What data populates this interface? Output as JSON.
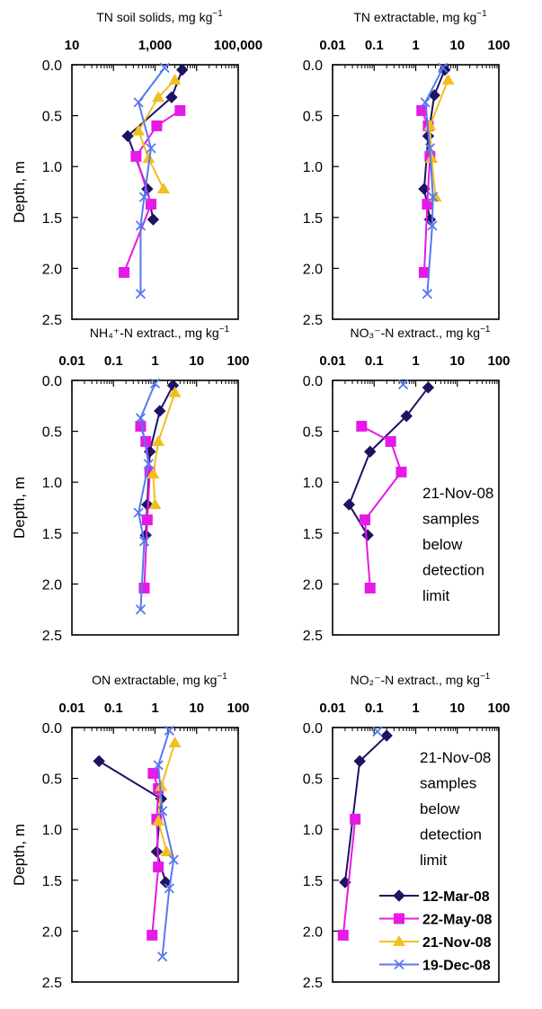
{
  "figure": {
    "y_axis_label": "Depth, m"
  },
  "legend": {
    "entries": [
      {
        "label": "12-Mar-08",
        "color": "#1b1464",
        "marker": "diamond"
      },
      {
        "label": "22-May-08",
        "color": "#e619e6",
        "marker": "square"
      },
      {
        "label": "21-Nov-08",
        "color": "#f0c020",
        "marker": "triangle"
      },
      {
        "label": "19-Dec-08",
        "color": "#5878f0",
        "marker": "x"
      }
    ]
  },
  "chart_data": [
    {
      "type": "line",
      "title": "TN soil solids, mg kg",
      "title_sup": "−1",
      "xscale": "log",
      "xlim": [
        10,
        100000
      ],
      "xticks": [
        "10",
        "1,000",
        "100,000"
      ],
      "xtick_values": [
        10,
        1000,
        100000
      ],
      "ylabel": "Depth, m",
      "ylim": [
        0,
        2.5
      ],
      "yticks": [
        "0.0",
        "0.5",
        "1.0",
        "1.5",
        "2.0",
        "2.5"
      ],
      "series": [
        {
          "name": "12-Mar-08",
          "points": [
            [
              4500,
              0.05
            ],
            [
              2500,
              0.32
            ],
            [
              220,
              0.7
            ],
            [
              650,
              1.22
            ],
            [
              900,
              1.52
            ]
          ]
        },
        {
          "name": "22-May-08",
          "points": [
            [
              4000,
              0.45
            ],
            [
              1100,
              0.6
            ],
            [
              350,
              0.9
            ],
            [
              800,
              1.37
            ],
            [
              180,
              2.04
            ]
          ]
        },
        {
          "name": "21-Nov-08",
          "points": [
            [
              3000,
              0.15
            ],
            [
              1200,
              0.32
            ],
            [
              400,
              0.65
            ],
            [
              700,
              0.92
            ],
            [
              1600,
              1.22
            ]
          ]
        },
        {
          "name": "19-Dec-08",
          "points": [
            [
              1700,
              0.03
            ],
            [
              400,
              0.37
            ],
            [
              800,
              0.82
            ],
            [
              550,
              1.3
            ],
            [
              450,
              1.58
            ],
            [
              450,
              2.25
            ]
          ]
        }
      ]
    },
    {
      "type": "line",
      "title": "TN extractable,  mg kg",
      "title_sup": "−1",
      "xscale": "log",
      "xlim": [
        0.01,
        100
      ],
      "xticks": [
        "0.01",
        "0.1",
        "1",
        "10",
        "100"
      ],
      "xtick_values": [
        0.01,
        0.1,
        1,
        10,
        100
      ],
      "ylim": [
        0,
        2.5
      ],
      "yticks": [
        "0.0",
        "0.5",
        "1.0",
        "1.5",
        "2.0",
        "2.5"
      ],
      "series": [
        {
          "name": "12-Mar-08",
          "points": [
            [
              5.0,
              0.05
            ],
            [
              2.8,
              0.3
            ],
            [
              2.0,
              0.7
            ],
            [
              1.6,
              1.22
            ],
            [
              2.2,
              1.52
            ]
          ]
        },
        {
          "name": "22-May-08",
          "points": [
            [
              1.4,
              0.45
            ],
            [
              2.0,
              0.6
            ],
            [
              2.2,
              0.9
            ],
            [
              1.9,
              1.37
            ],
            [
              1.6,
              2.04
            ]
          ]
        },
        {
          "name": "21-Nov-08",
          "points": [
            [
              6.0,
              0.15
            ],
            [
              2.2,
              0.6
            ],
            [
              2.4,
              0.92
            ],
            [
              3.0,
              1.3
            ]
          ]
        },
        {
          "name": "19-Dec-08",
          "points": [
            [
              4.5,
              0.03
            ],
            [
              1.7,
              0.37
            ],
            [
              2.2,
              0.82
            ],
            [
              2.6,
              1.3
            ],
            [
              2.5,
              1.58
            ],
            [
              1.9,
              2.25
            ]
          ]
        }
      ]
    },
    {
      "type": "line",
      "title": "NH₄⁺-N  extract.,  mg kg",
      "title_sup": "−1",
      "xscale": "log",
      "xlim": [
        0.01,
        100
      ],
      "xticks": [
        "0.01",
        "0.1",
        "1",
        "10",
        "100"
      ],
      "xtick_values": [
        0.01,
        0.1,
        1,
        10,
        100
      ],
      "ylabel": "Depth, m",
      "ylim": [
        0,
        2.5
      ],
      "yticks": [
        "0.0",
        "0.5",
        "1.0",
        "1.5",
        "2.0",
        "2.5"
      ],
      "series": [
        {
          "name": "12-Mar-08",
          "points": [
            [
              2.7,
              0.05
            ],
            [
              1.3,
              0.3
            ],
            [
              0.75,
              0.7
            ],
            [
              0.65,
              1.22
            ],
            [
              0.6,
              1.52
            ]
          ]
        },
        {
          "name": "22-May-08",
          "points": [
            [
              0.45,
              0.45
            ],
            [
              0.6,
              0.6
            ],
            [
              0.75,
              0.9
            ],
            [
              0.65,
              1.37
            ],
            [
              0.55,
              2.04
            ]
          ]
        },
        {
          "name": "21-Nov-08",
          "points": [
            [
              3.0,
              0.12
            ],
            [
              1.2,
              0.6
            ],
            [
              0.9,
              0.92
            ],
            [
              1.0,
              1.22
            ]
          ]
        },
        {
          "name": "19-Dec-08",
          "points": [
            [
              1.0,
              0.03
            ],
            [
              0.45,
              0.37
            ],
            [
              0.7,
              0.82
            ],
            [
              0.4,
              1.3
            ],
            [
              0.55,
              1.58
            ],
            [
              0.45,
              2.25
            ]
          ]
        }
      ]
    },
    {
      "type": "line",
      "title": "NO₃⁻-N  extract.,  mg kg",
      "title_sup": "−1",
      "xscale": "log",
      "xlim": [
        0.01,
        100
      ],
      "xticks": [
        "0.01",
        "0.1",
        "1",
        "10",
        "100"
      ],
      "xtick_values": [
        0.01,
        0.1,
        1,
        10,
        100
      ],
      "ylim": [
        0,
        2.5
      ],
      "yticks": [
        "0.0",
        "0.5",
        "1.0",
        "1.5",
        "2.0",
        "2.5"
      ],
      "annotation": [
        "21-Nov-08",
        "samples",
        "below",
        "detection",
        "limit"
      ],
      "series": [
        {
          "name": "12-Mar-08",
          "points": [
            [
              2.0,
              0.07
            ],
            [
              0.6,
              0.35
            ],
            [
              0.08,
              0.7
            ],
            [
              0.025,
              1.22
            ],
            [
              0.07,
              1.52
            ]
          ]
        },
        {
          "name": "22-May-08",
          "points": [
            [
              0.05,
              0.45
            ],
            [
              0.25,
              0.6
            ],
            [
              0.45,
              0.9
            ],
            [
              0.06,
              1.37
            ],
            [
              0.08,
              2.04
            ]
          ]
        },
        {
          "name": "19-Dec-08",
          "points": [
            [
              0.5,
              0.04
            ]
          ]
        }
      ]
    },
    {
      "type": "line",
      "title": "ON extractable,  mg kg",
      "title_sup": "−1",
      "xscale": "log",
      "xlim": [
        0.01,
        100
      ],
      "xticks": [
        "0.01",
        "0.1",
        "1",
        "10",
        "100"
      ],
      "xtick_values": [
        0.01,
        0.1,
        1,
        10,
        100
      ],
      "ylabel": "Depth, m",
      "ylim": [
        0,
        2.5
      ],
      "yticks": [
        "0.0",
        "0.5",
        "1.0",
        "1.5",
        "2.0",
        "2.5"
      ],
      "series": [
        {
          "name": "12-Mar-08",
          "points": [
            [
              0.045,
              0.33
            ],
            [
              1.4,
              0.7
            ],
            [
              1.1,
              1.22
            ],
            [
              1.8,
              1.52
            ]
          ]
        },
        {
          "name": "22-May-08",
          "points": [
            [
              0.9,
              0.45
            ],
            [
              1.2,
              0.6
            ],
            [
              1.1,
              0.9
            ],
            [
              1.2,
              1.37
            ],
            [
              0.85,
              2.04
            ]
          ]
        },
        {
          "name": "21-Nov-08",
          "points": [
            [
              3.0,
              0.15
            ],
            [
              1.4,
              0.58
            ],
            [
              1.2,
              0.92
            ],
            [
              1.9,
              1.22
            ]
          ]
        },
        {
          "name": "19-Dec-08",
          "points": [
            [
              2.2,
              0.03
            ],
            [
              1.2,
              0.37
            ],
            [
              1.5,
              0.82
            ],
            [
              2.8,
              1.3
            ],
            [
              2.2,
              1.58
            ],
            [
              1.5,
              2.25
            ]
          ]
        }
      ]
    },
    {
      "type": "line",
      "title": "NO₂⁻-N  extract.,  mg kg",
      "title_sup": "−1",
      "xscale": "log",
      "xlim": [
        0.01,
        100
      ],
      "xticks": [
        "0.01",
        "0.1",
        "1",
        "10",
        "100"
      ],
      "xtick_values": [
        0.01,
        0.1,
        1,
        10,
        100
      ],
      "ylim": [
        0,
        2.5
      ],
      "yticks": [
        "0.0",
        "0.5",
        "1.0",
        "1.5",
        "2.0",
        "2.5"
      ],
      "annotation": [
        "21-Nov-08",
        "samples",
        "below",
        "detection",
        "limit"
      ],
      "series": [
        {
          "name": "12-Mar-08",
          "points": [
            [
              0.2,
              0.08
            ],
            [
              0.045,
              0.33
            ],
            [
              0.02,
              1.52
            ]
          ]
        },
        {
          "name": "22-May-08",
          "points": [
            [
              0.035,
              0.9
            ],
            [
              0.018,
              2.04
            ]
          ]
        },
        {
          "name": "19-Dec-08",
          "points": [
            [
              0.12,
              0.04
            ]
          ]
        }
      ]
    }
  ]
}
